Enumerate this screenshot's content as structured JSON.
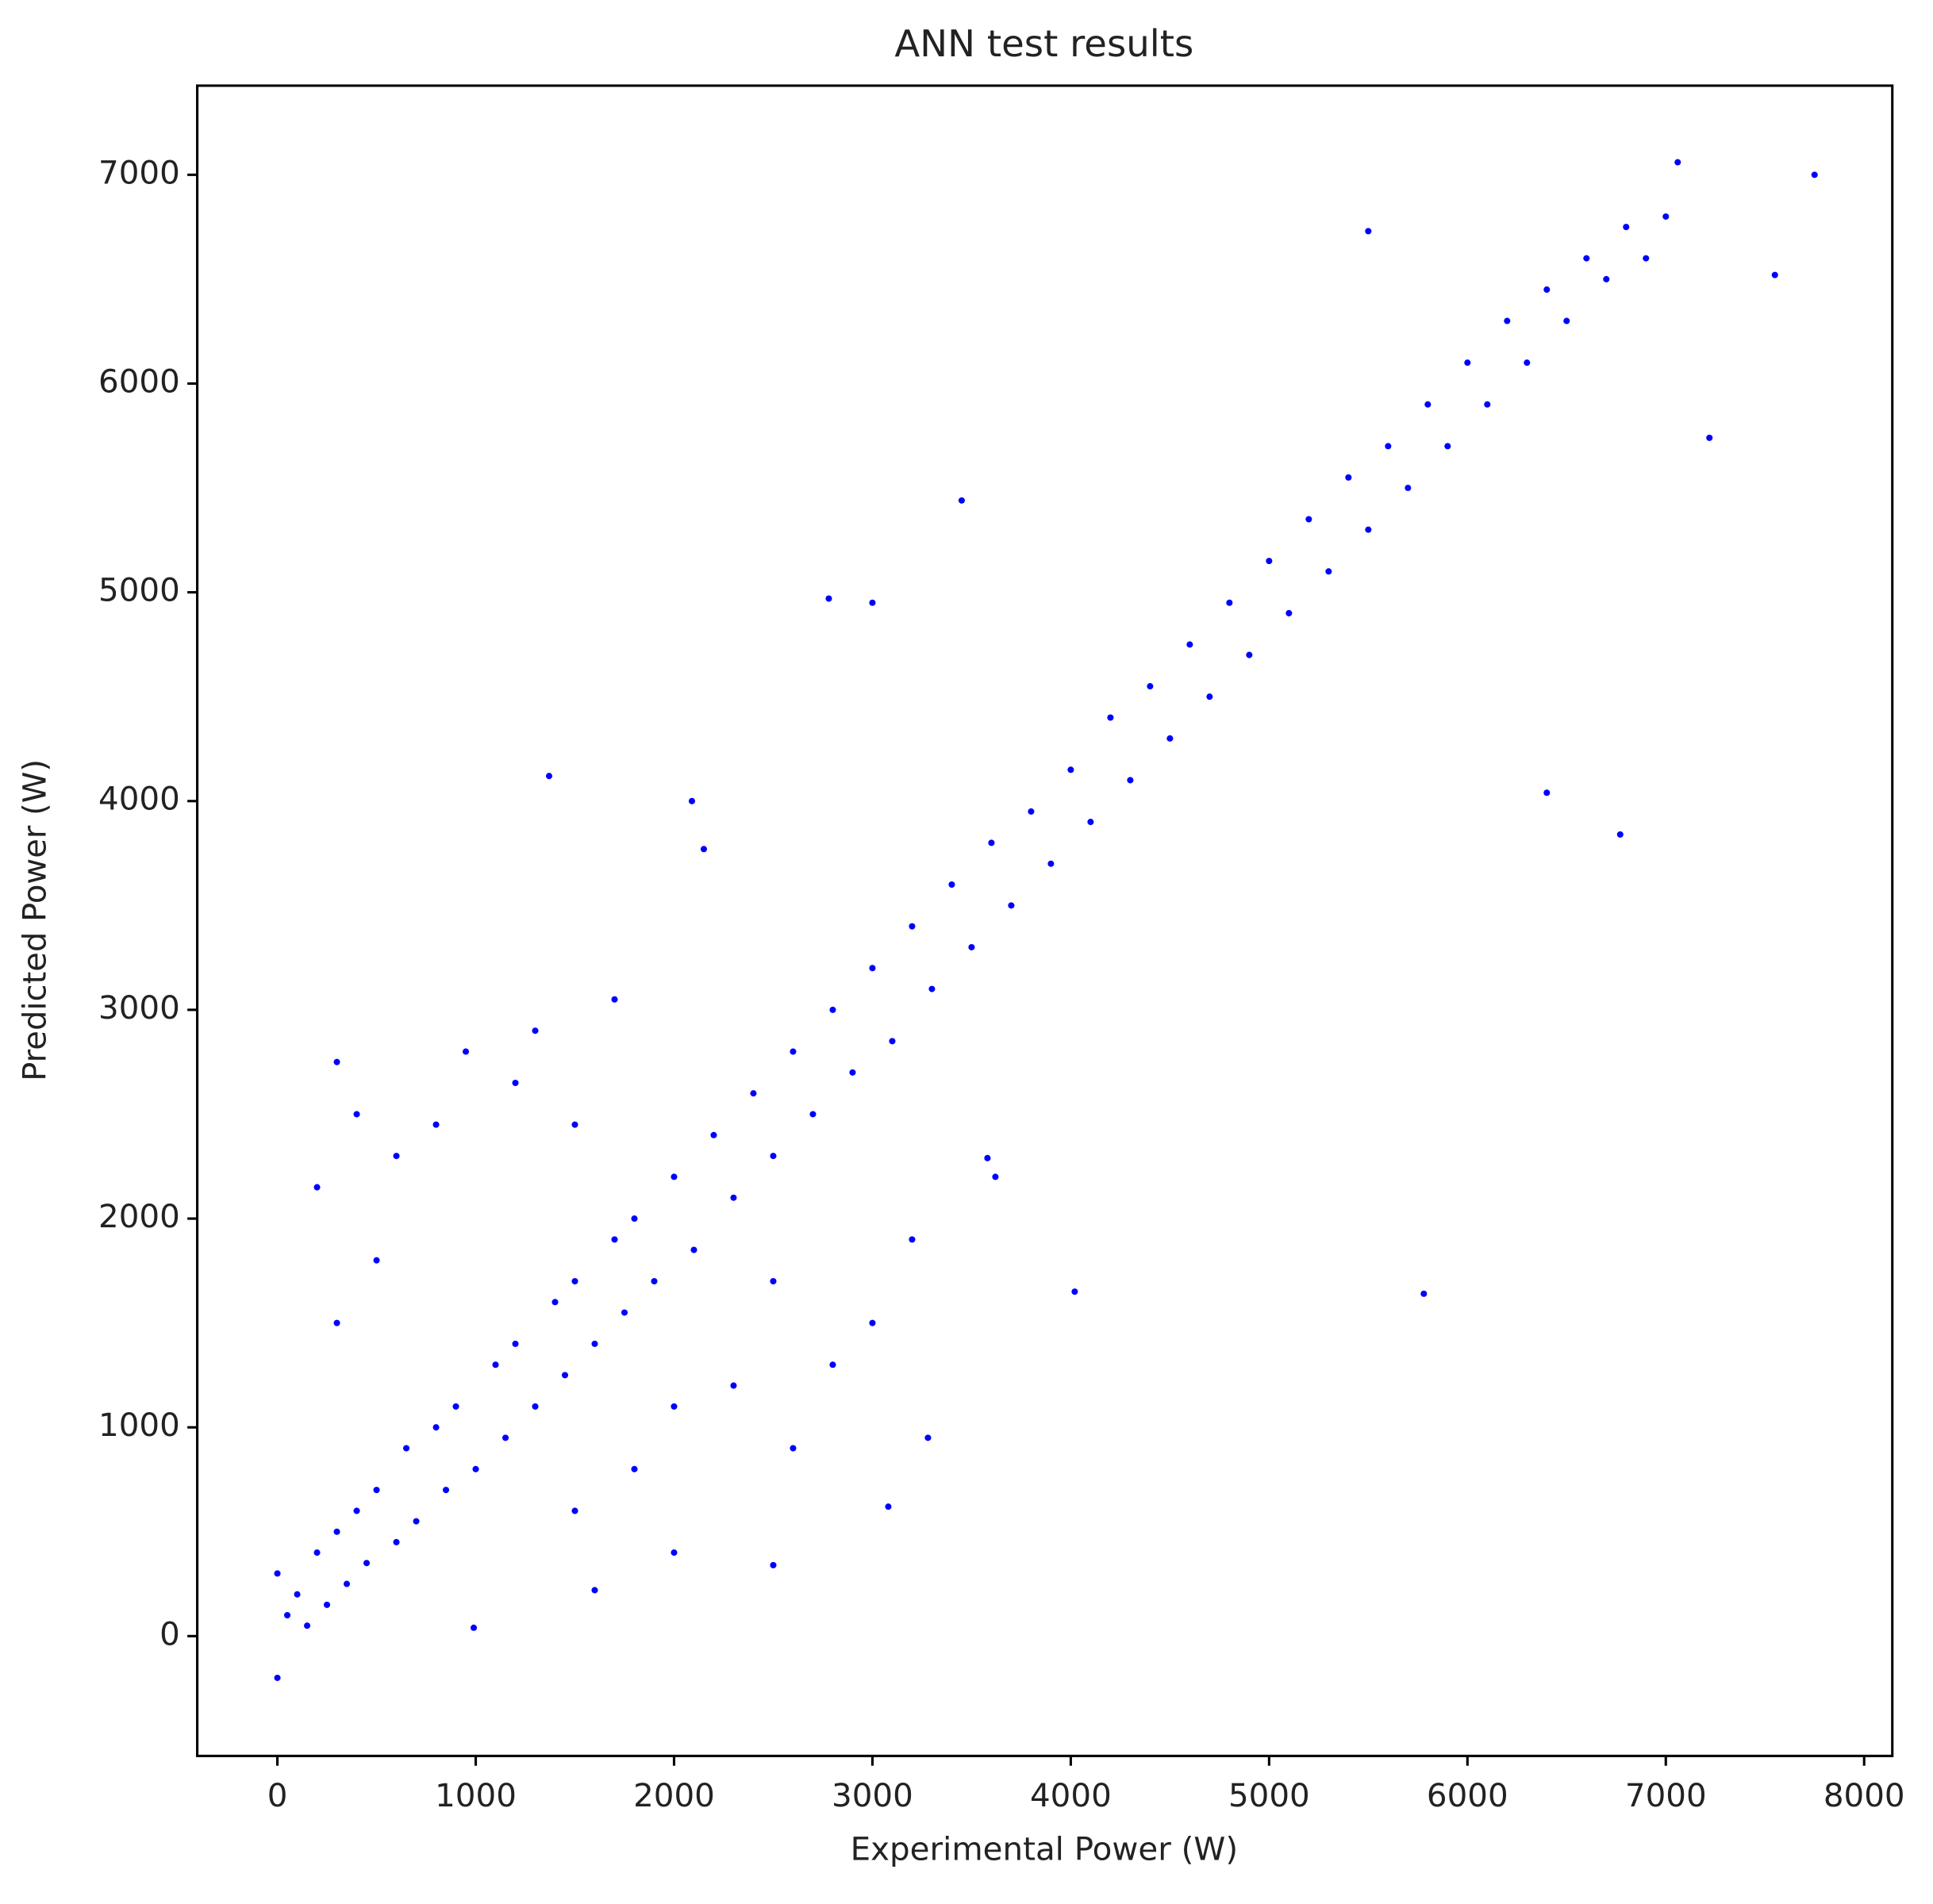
{
  "chart_data": {
    "type": "scatter",
    "title": "ANN test results",
    "x_label": "Experimental Power (W)",
    "y_label": "Predicted Power (W)",
    "color": "#0000ff",
    "xlim": [
      -404,
      8142
    ],
    "ylim": [
      -574,
      7427
    ],
    "xticks": [
      0,
      1000,
      2000,
      3000,
      4000,
      5000,
      6000,
      7000,
      8000
    ],
    "yticks": [
      0,
      1000,
      2000,
      3000,
      4000,
      5000,
      6000,
      7000
    ],
    "x": [
      7750,
      7550,
      7220,
      6770,
      6400,
      5780,
      4020,
      1370,
      2090,
      2150,
      2780,
      3000,
      3450,
      3620,
      3580,
      990,
      2500,
      3280,
      3080,
      7060,
      5500,
      0,
      0,
      50,
      100,
      150,
      200,
      250,
      300,
      350,
      400,
      450,
      500,
      600,
      650,
      700,
      800,
      850,
      900,
      1000,
      1100,
      1150,
      1200,
      1300,
      1400,
      1450,
      1500,
      1600,
      1700,
      1750,
      1800,
      1900,
      2000,
      2100,
      2200,
      2300,
      2400,
      2500,
      2600,
      2700,
      2800,
      2900,
      3000,
      3100,
      3200,
      3300,
      3400,
      3500,
      3600,
      3700,
      3800,
      3900,
      4000,
      4100,
      4200,
      4300,
      4400,
      4500,
      4600,
      4700,
      4800,
      4900,
      5000,
      5100,
      5200,
      5300,
      5400,
      5500,
      5600,
      5700,
      5800,
      5900,
      6000,
      6100,
      6200,
      6300,
      6400,
      6500,
      6600,
      6700,
      6800,
      6900,
      7000,
      300,
      400,
      600,
      800,
      950,
      500,
      300,
      200,
      1200,
      1500,
      1700,
      1300,
      1500,
      1800,
      2000,
      2300,
      2600,
      2800,
      3000,
      3200,
      2500,
      2000,
      1600
    ],
    "y": [
      7000,
      6520,
      5740,
      3840,
      4040,
      1640,
      1650,
      4120,
      4000,
      3770,
      4970,
      4950,
      5440,
      2200,
      2290,
      40,
      340,
      950,
      620,
      7060,
      6730,
      -200,
      300,
      100,
      200,
      50,
      400,
      150,
      500,
      250,
      600,
      350,
      700,
      450,
      900,
      550,
      1000,
      700,
      1100,
      800,
      1300,
      950,
      1400,
      1100,
      1600,
      1250,
      1700,
      1400,
      1900,
      1550,
      2000,
      1700,
      2200,
      1850,
      2400,
      2100,
      2600,
      2300,
      2800,
      2500,
      3000,
      2700,
      3200,
      2850,
      3400,
      3100,
      3600,
      3300,
      3800,
      3500,
      3950,
      3700,
      4150,
      3900,
      4400,
      4100,
      4550,
      4300,
      4750,
      4500,
      4950,
      4700,
      5150,
      4900,
      5350,
      5100,
      5550,
      5300,
      5700,
      5500,
      5900,
      5700,
      6100,
      5900,
      6300,
      6100,
      6450,
      6300,
      6600,
      6500,
      6750,
      6600,
      6800,
      2750,
      2500,
      2300,
      2450,
      2800,
      1800,
      1500,
      2150,
      2650,
      2450,
      3050,
      2900,
      600,
      800,
      1100,
      1200,
      900,
      1300,
      1500,
      1900,
      1700,
      400,
      220
    ]
  }
}
